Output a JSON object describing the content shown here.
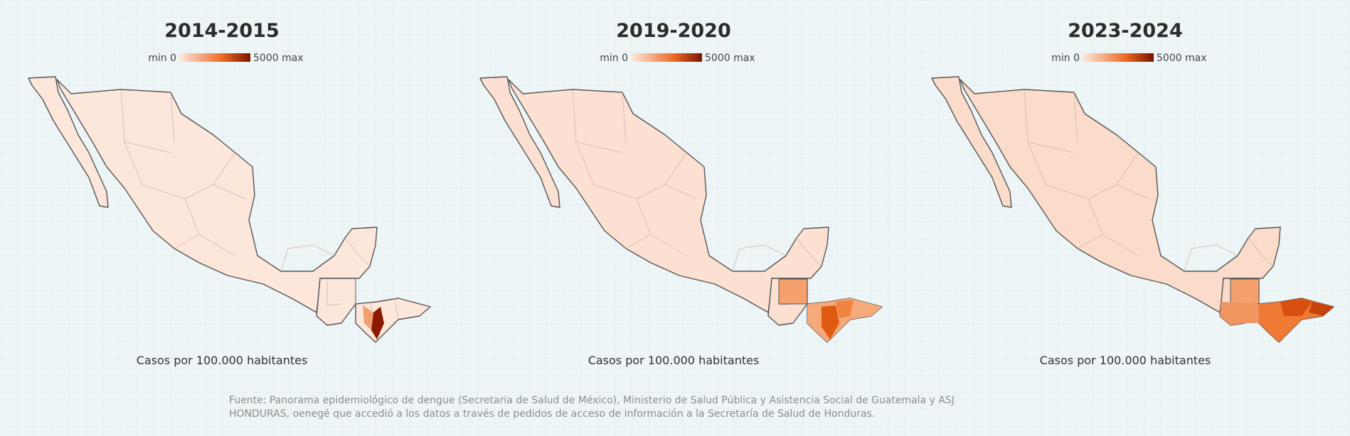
{
  "panels": [
    {
      "title": "2014-2015",
      "legend_min": "min 0",
      "legend_max": "5000 max",
      "caption": "Casos por 100.000 habitantes"
    },
    {
      "title": "2019-2020",
      "legend_min": "min 0",
      "legend_max": "5000 max",
      "caption": "Casos por 100.000 habitantes"
    },
    {
      "title": "2023-2024",
      "legend_min": "min 0",
      "legend_max": "5000 max",
      "caption": "Casos por 100.000 habitantes"
    }
  ],
  "source": "Fuente: Panorama epidemiológico de dengue (Secretaria de Salud de México), Ministerio de Salud Pública y Asistencia Social de Guatemala y ASJ HONDURAS, oenegé que accedió a los datos a través de pedidos de acceso de información a la Secretaría de Salud de Honduras."
}
